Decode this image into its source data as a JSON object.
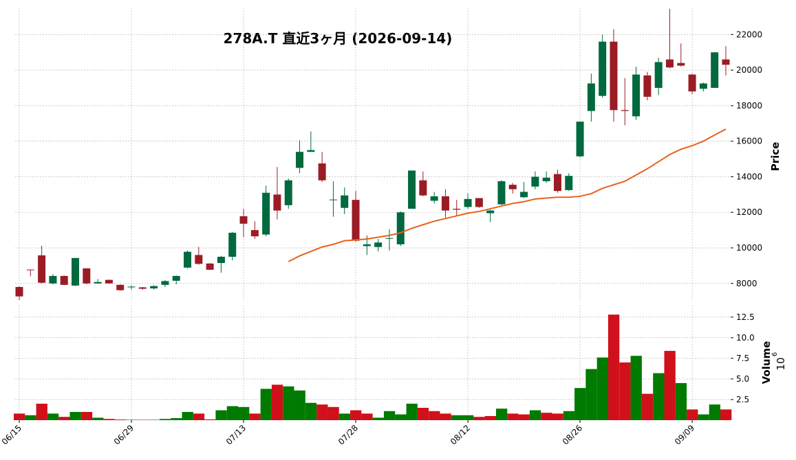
{
  "chart_data": {
    "type": "candlestick",
    "title": "278A.T 直近3ヶ月 (2026-09-14)",
    "categories": [
      "06/15",
      null,
      null,
      null,
      null,
      null,
      null,
      null,
      null,
      null,
      "06/29",
      null,
      null,
      null,
      null,
      null,
      null,
      null,
      null,
      null,
      "07/13",
      null,
      null,
      null,
      null,
      null,
      null,
      null,
      null,
      null,
      "07/28",
      null,
      null,
      null,
      null,
      null,
      null,
      null,
      null,
      null,
      "08/12",
      null,
      null,
      null,
      null,
      null,
      null,
      null,
      null,
      null,
      "08/26",
      null,
      null,
      null,
      null,
      null,
      null,
      null,
      null,
      null,
      "09/09",
      null,
      null,
      null
    ],
    "open": [
      7800,
      8780,
      9580,
      8000,
      8420,
      7880,
      8850,
      8000,
      8200,
      7920,
      7780,
      7780,
      7720,
      7920,
      8150,
      8890,
      9600,
      9120,
      9150,
      9500,
      11780,
      11000,
      10750,
      13000,
      12400,
      14500,
      15400,
      14750,
      12680,
      12250,
      12700,
      10100,
      10050,
      10550,
      10200,
      12200,
      13800,
      12650,
      12900,
      12200,
      12300,
      12800,
      11950,
      12450,
      13550,
      12850,
      13450,
      13750,
      14150,
      13250,
      15150,
      17700,
      18550,
      21600,
      17750,
      17400,
      19700,
      19000,
      20600,
      20400,
      19750,
      18950,
      19000,
      20600
    ],
    "high": [
      7850,
      8780,
      10120,
      8520,
      8450,
      9430,
      8850,
      8250,
      8220,
      7950,
      7900,
      7800,
      7900,
      8200,
      8450,
      9850,
      10050,
      9150,
      9550,
      10900,
      12200,
      11500,
      13500,
      14550,
      13900,
      16050,
      16550,
      15400,
      13750,
      13400,
      13200,
      10700,
      10500,
      11050,
      12050,
      14350,
      14300,
      13150,
      13300,
      12700,
      13050,
      12800,
      12150,
      13800,
      13650,
      13700,
      14300,
      14300,
      14400,
      14200,
      17100,
      19800,
      22000,
      22300,
      19550,
      20200,
      19900,
      20700,
      23450,
      21500,
      19800,
      19300,
      21000,
      21350
    ],
    "low": [
      7070,
      8400,
      7990,
      7950,
      7900,
      7850,
      7950,
      7980,
      7980,
      7580,
      7650,
      7650,
      7650,
      7800,
      7950,
      8850,
      9050,
      8750,
      8600,
      9300,
      10600,
      10500,
      10650,
      11600,
      12200,
      14200,
      15400,
      13700,
      11750,
      11900,
      10350,
      9600,
      9800,
      9850,
      10100,
      12200,
      12900,
      12500,
      11700,
      11800,
      12200,
      12250,
      11450,
      12400,
      13050,
      12800,
      13300,
      13650,
      13100,
      13200,
      15100,
      17100,
      18450,
      17100,
      16900,
      17200,
      18300,
      18600,
      20100,
      20200,
      18650,
      18800,
      19000,
      19700
    ],
    "close": [
      7270,
      8750,
      8040,
      8420,
      7920,
      9430,
      8000,
      8080,
      8000,
      7620,
      7820,
      7700,
      7850,
      8130,
      8420,
      9780,
      9100,
      8770,
      9500,
      10850,
      11360,
      10650,
      13100,
      12100,
      13800,
      15400,
      15500,
      13800,
      12720,
      12950,
      10400,
      10200,
      10300,
      10550,
      12000,
      14350,
      12950,
      12900,
      12100,
      12150,
      12750,
      12300,
      12100,
      13750,
      13300,
      13150,
      14000,
      13950,
      13200,
      14050,
      17100,
      19250,
      21600,
      17750,
      17700,
      19750,
      18500,
      20450,
      20150,
      20250,
      18800,
      19250,
      21000,
      20300
    ],
    "up_color": "#00693e",
    "down_color": "#9b1c24",
    "ma": {
      "color": "#e8601c",
      "values": [
        null,
        null,
        null,
        null,
        null,
        null,
        null,
        null,
        null,
        null,
        null,
        null,
        null,
        null,
        null,
        null,
        null,
        null,
        null,
        null,
        null,
        null,
        null,
        null,
        9230,
        9550,
        9800,
        10050,
        10200,
        10400,
        10450,
        10500,
        10600,
        10700,
        10850,
        11100,
        11300,
        11500,
        11650,
        11800,
        11950,
        12050,
        12200,
        12350,
        12500,
        12600,
        12750,
        12800,
        12850,
        12850,
        12900,
        13050,
        13350,
        13550,
        13750,
        14100,
        14450,
        14850,
        15250,
        15550,
        15750,
        16000,
        16350,
        16680
      ]
    },
    "volume": {
      "up_color": "#007a00",
      "down_color": "#d0101a",
      "values": [
        0.8,
        0.6,
        2.0,
        0.8,
        0.4,
        1.0,
        1.0,
        0.3,
        0.15,
        0.08,
        0.05,
        0.05,
        0.05,
        0.15,
        0.25,
        1.0,
        0.8,
        0.1,
        1.2,
        1.7,
        1.6,
        0.8,
        3.8,
        4.3,
        4.1,
        3.6,
        2.1,
        1.9,
        1.6,
        0.8,
        1.2,
        0.8,
        0.3,
        1.1,
        0.7,
        2.0,
        1.5,
        1.1,
        0.8,
        0.6,
        0.6,
        0.4,
        0.5,
        1.4,
        0.8,
        0.7,
        1.2,
        0.9,
        0.8,
        1.1,
        3.9,
        6.2,
        7.6,
        12.8,
        7.0,
        7.8,
        3.2,
        5.7,
        8.4,
        4.5,
        1.3,
        0.7,
        1.9,
        1.3
      ]
    },
    "ylabel": "Price",
    "ylim": [
      6950,
      23480
    ],
    "yticks": [
      8000,
      10000,
      12000,
      14000,
      16000,
      18000,
      20000,
      22000
    ],
    "y2label": "Volume",
    "y2_offset": {
      "base": "10",
      "exponent": "6"
    },
    "y2lim": [
      0,
      13.9
    ],
    "y2ticks": [
      2.5,
      {
        "value": 5,
        "label": "5.0"
      },
      7.5,
      {
        "value": 10,
        "label": "10.0"
      },
      12.5
    ],
    "grid": true
  }
}
